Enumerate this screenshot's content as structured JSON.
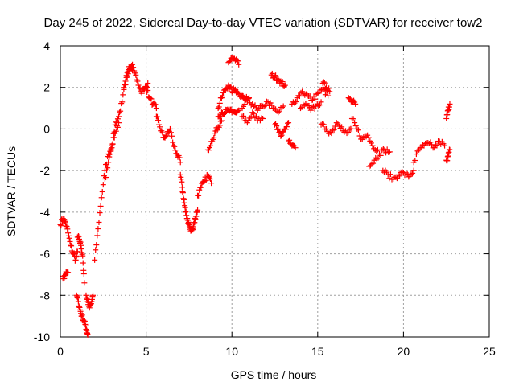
{
  "chart_data": {
    "type": "scatter",
    "title": "Day 245 of 2022, Sidereal Day-to-day VTEC variation (SDTVAR) for receiver tow2",
    "xlabel": "GPS time / hours",
    "ylabel": "SDTVAR / TECUs",
    "xlim": [
      0,
      25
    ],
    "ylim": [
      -10,
      4
    ],
    "xticks": [
      "0",
      "5",
      "10",
      "15",
      "20",
      "25"
    ],
    "yticks": [
      "4",
      "2",
      "0",
      "-2",
      "-4",
      "-6",
      "-8",
      "-10"
    ],
    "grid": true,
    "marker": "+",
    "marker_color": "#ff0000",
    "series": [
      {
        "name": "SDTVAR",
        "segments": [
          {
            "x": [
              0.0,
              0.15,
              0.3,
              0.45,
              0.6,
              0.75,
              0.9,
              1.0
            ],
            "y": [
              -4.6,
              -4.3,
              -4.5,
              -5.0,
              -5.6,
              -6.0,
              -6.3,
              -5.9
            ]
          },
          {
            "x": [
              0.15,
              0.3,
              0.45
            ],
            "y": [
              -7.2,
              -7.0,
              -6.9
            ]
          },
          {
            "x": [
              1.0,
              1.1,
              1.2,
              1.3,
              1.4
            ],
            "y": [
              -5.2,
              -5.3,
              -5.6,
              -6.1,
              -7.4
            ]
          },
          {
            "x": [
              0.95,
              1.05,
              1.15,
              1.25,
              1.35,
              1.45,
              1.55,
              1.6
            ],
            "y": [
              -8.0,
              -8.3,
              -8.7,
              -9.0,
              -9.2,
              -9.4,
              -9.7,
              -9.9
            ]
          },
          {
            "x": [
              1.5,
              1.6,
              1.7,
              1.8,
              1.9
            ],
            "y": [
              -8.0,
              -8.3,
              -8.6,
              -8.4,
              -8.0
            ]
          },
          {
            "x": [
              2.0,
              2.2,
              2.4,
              2.6,
              2.8,
              3.0,
              3.2,
              3.4,
              3.6,
              3.8,
              4.0,
              4.2
            ],
            "y": [
              -6.3,
              -4.8,
              -3.3,
              -2.0,
              -1.2,
              -0.9,
              0.2,
              0.6,
              1.3,
              2.3,
              3.0,
              3.1
            ]
          },
          {
            "x": [
              2.6,
              2.8,
              3.0,
              3.2,
              3.4
            ],
            "y": [
              -2.4,
              -1.6,
              -0.8,
              -0.2,
              0.3
            ]
          },
          {
            "x": [
              3.7,
              3.9,
              4.1,
              4.3,
              4.5,
              4.7,
              4.9,
              5.1
            ],
            "y": [
              2.0,
              2.5,
              3.0,
              2.8,
              2.3,
              1.8,
              1.9,
              2.2
            ]
          },
          {
            "x": [
              5.0,
              5.2,
              5.4,
              5.6
            ],
            "y": [
              2.0,
              1.5,
              1.2,
              1.0
            ]
          },
          {
            "x": [
              5.6,
              5.8,
              6.0,
              6.2,
              6.4,
              6.6,
              6.8,
              7.0
            ],
            "y": [
              0.6,
              0.1,
              -0.4,
              -0.3,
              0.0,
              -0.8,
              -1.2,
              -1.6
            ]
          },
          {
            "x": [
              7.0,
              7.1,
              7.2,
              7.3,
              7.4,
              7.5,
              7.6,
              7.7,
              7.8,
              7.9,
              8.0
            ],
            "y": [
              -2.2,
              -2.8,
              -3.4,
              -4.0,
              -4.3,
              -4.6,
              -4.9,
              -4.8,
              -4.5,
              -4.2,
              -3.9
            ]
          },
          {
            "x": [
              8.0,
              8.2,
              8.4,
              8.6,
              8.8
            ],
            "y": [
              -3.2,
              -2.8,
              -2.5,
              -2.2,
              -2.6
            ]
          },
          {
            "x": [
              8.6,
              8.8,
              9.0,
              9.2,
              9.4
            ],
            "y": [
              -1.0,
              -0.6,
              -0.2,
              0.1,
              0.4
            ]
          },
          {
            "x": [
              9.2,
              9.4,
              9.6,
              9.8,
              10.0,
              10.2,
              10.4,
              10.6,
              10.8,
              11.0
            ],
            "y": [
              1.0,
              1.5,
              1.9,
              2.1,
              1.8,
              1.9,
              1.7,
              1.6,
              1.4,
              1.5
            ]
          },
          {
            "x": [
              9.2,
              9.4,
              9.6,
              9.8,
              10.0,
              10.2,
              10.4
            ],
            "y": [
              0.6,
              0.8,
              0.8,
              0.9,
              0.8,
              0.8,
              0.9
            ]
          },
          {
            "x": [
              9.8,
              10.0,
              10.2,
              10.4
            ],
            "y": [
              3.2,
              3.4,
              3.3,
              3.1
            ]
          },
          {
            "x": [
              10.6,
              10.9,
              11.2,
              11.5,
              11.8,
              12.1,
              12.4,
              12.7,
              13.0
            ],
            "y": [
              1.0,
              1.4,
              1.2,
              0.9,
              1.1,
              1.3,
              1.0,
              0.8,
              1.1
            ]
          },
          {
            "x": [
              10.6,
              10.9,
              11.2,
              11.5,
              11.8
            ],
            "y": [
              0.6,
              0.3,
              0.8,
              0.4,
              0.5
            ]
          },
          {
            "x": [
              12.3,
              12.5,
              12.7,
              12.9,
              13.1
            ],
            "y": [
              2.6,
              2.5,
              2.4,
              2.2,
              2.1
            ]
          },
          {
            "x": [
              12.5,
              12.7,
              12.9,
              13.1,
              13.3
            ],
            "y": [
              0.2,
              0.0,
              -0.3,
              0.0,
              0.3
            ]
          },
          {
            "x": [
              13.3,
              13.5,
              13.7
            ],
            "y": [
              -0.6,
              -0.8,
              -0.9
            ]
          },
          {
            "x": [
              13.5,
              13.8,
              14.1,
              14.4,
              14.7,
              15.0,
              15.3,
              15.6
            ],
            "y": [
              1.2,
              1.5,
              1.8,
              1.6,
              1.4,
              1.7,
              1.9,
              1.6
            ]
          },
          {
            "x": [
              14.0,
              14.3,
              14.6,
              14.9,
              15.2
            ],
            "y": [
              1.0,
              1.2,
              0.9,
              1.1,
              1.3
            ]
          },
          {
            "x": [
              15.3,
              15.5,
              15.7
            ],
            "y": [
              2.2,
              2.0,
              1.8
            ]
          },
          {
            "x": [
              15.2,
              15.5,
              15.8,
              16.1,
              16.4,
              16.7,
              17.0
            ],
            "y": [
              0.2,
              0.0,
              -0.2,
              0.3,
              0.1,
              -0.2,
              0.0
            ]
          },
          {
            "x": [
              16.8,
              17.0,
              17.2
            ],
            "y": [
              1.5,
              1.3,
              1.2
            ]
          },
          {
            "x": [
              17.0,
              17.3,
              17.6,
              17.9,
              18.2,
              18.5
            ],
            "y": [
              0.5,
              0.0,
              -0.5,
              -0.3,
              -0.8,
              -1.0
            ]
          },
          {
            "x": [
              18.0,
              18.3,
              18.6,
              18.9,
              19.2
            ],
            "y": [
              -1.8,
              -1.5,
              -1.2,
              -1.0,
              -1.1
            ]
          },
          {
            "x": [
              18.8,
              19.1,
              19.4,
              19.7,
              20.0,
              20.3,
              20.6
            ],
            "y": [
              -2.0,
              -2.2,
              -2.4,
              -2.2,
              -2.1,
              -2.3,
              -2.0
            ]
          },
          {
            "x": [
              20.6,
              20.9,
              21.2,
              21.5,
              21.8,
              22.1,
              22.4
            ],
            "y": [
              -1.6,
              -1.0,
              -0.8,
              -0.7,
              -0.9,
              -0.6,
              -0.8
            ]
          },
          {
            "x": [
              22.5,
              22.6,
              22.7
            ],
            "y": [
              0.5,
              0.9,
              1.2
            ]
          },
          {
            "x": [
              22.5,
              22.6,
              22.7
            ],
            "y": [
              -1.5,
              -1.3,
              -1.0
            ]
          }
        ]
      }
    ]
  }
}
